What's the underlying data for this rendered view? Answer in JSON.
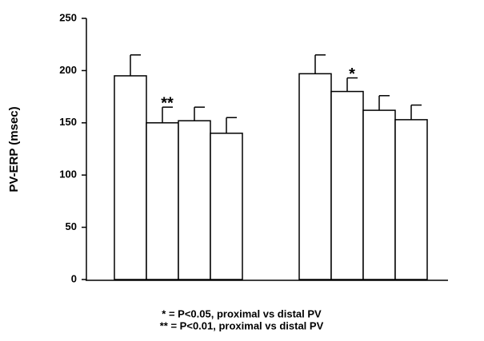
{
  "chart_data": {
    "type": "bar",
    "y_label": "PV-ERP (msec)",
    "categories": [
      null,
      null,
      null,
      null,
      null,
      null,
      null,
      null
    ],
    "values": [
      195,
      150,
      152,
      140,
      197,
      180,
      162,
      153
    ],
    "errors": [
      20,
      15,
      13,
      15,
      18,
      13,
      14,
      14
    ],
    "significance": [
      null,
      "**",
      null,
      null,
      null,
      "*",
      null,
      null
    ],
    "color": "#ffffff",
    "ylim": [
      0,
      250
    ],
    "yticks": [
      0,
      50,
      100,
      150,
      200,
      250
    ],
    "grid": false,
    "notes": [
      "* = P<0.05, proximal vs distal PV",
      "** = P<0.01, proximal vs distal PV"
    ]
  }
}
